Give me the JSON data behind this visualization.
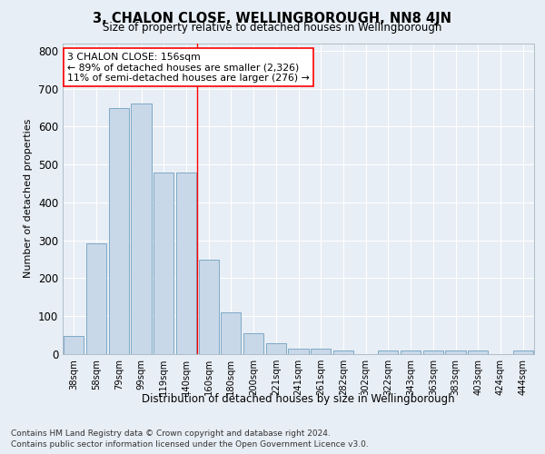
{
  "title": "3, CHALON CLOSE, WELLINGBOROUGH, NN8 4JN",
  "subtitle": "Size of property relative to detached houses in Wellingborough",
  "xlabel": "Distribution of detached houses by size in Wellingborough",
  "ylabel": "Number of detached properties",
  "categories": [
    "38sqm",
    "58sqm",
    "79sqm",
    "99sqm",
    "119sqm",
    "140sqm",
    "160sqm",
    "180sqm",
    "200sqm",
    "221sqm",
    "241sqm",
    "261sqm",
    "282sqm",
    "302sqm",
    "322sqm",
    "343sqm",
    "363sqm",
    "383sqm",
    "403sqm",
    "424sqm",
    "444sqm"
  ],
  "values": [
    47,
    293,
    648,
    660,
    478,
    478,
    250,
    110,
    55,
    28,
    14,
    14,
    10,
    0,
    10,
    10,
    10,
    10,
    10,
    0,
    10
  ],
  "bar_color": "#c8d8e8",
  "bar_edge_color": "#6ea0c0",
  "red_line_x": 6.0,
  "annotation_text": "3 CHALON CLOSE: 156sqm\n← 89% of detached houses are smaller (2,326)\n11% of semi-detached houses are larger (276) →",
  "annotation_box_color": "white",
  "annotation_box_edge": "red",
  "ylim": [
    0,
    820
  ],
  "yticks": [
    0,
    100,
    200,
    300,
    400,
    500,
    600,
    700,
    800
  ],
  "footer_line1": "Contains HM Land Registry data © Crown copyright and database right 2024.",
  "footer_line2": "Contains public sector information licensed under the Open Government Licence v3.0.",
  "bg_color": "#e8eef5",
  "plot_bg_color": "#e8eef5"
}
